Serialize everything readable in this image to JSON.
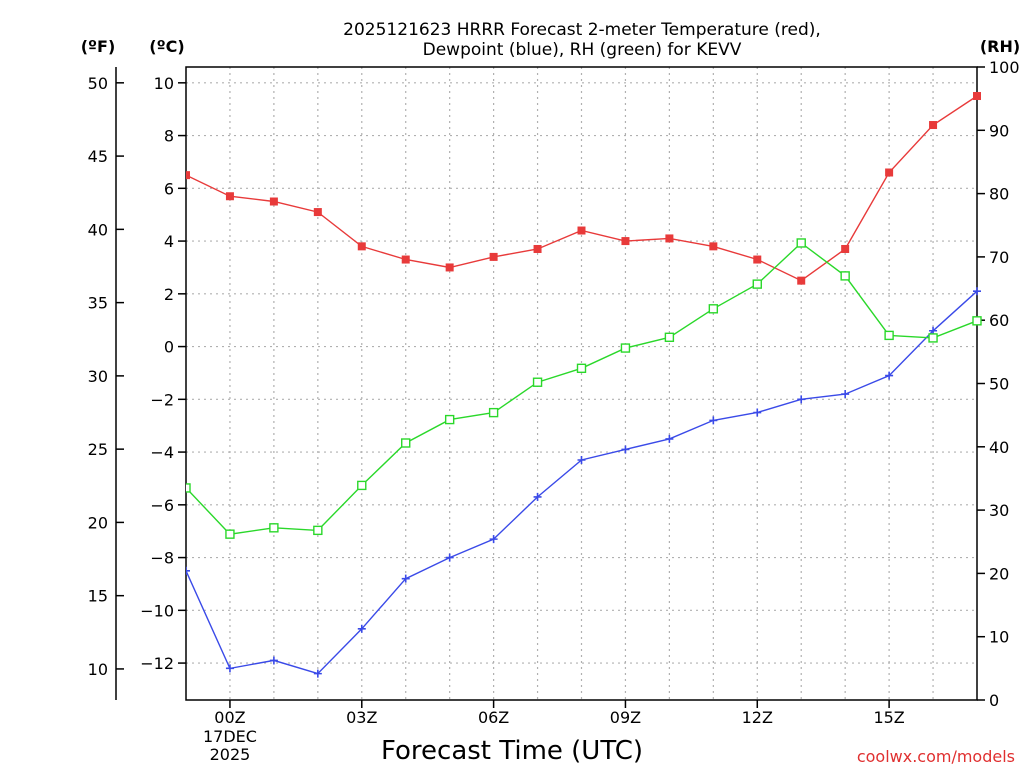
{
  "chart_data": {
    "type": "line",
    "title": [
      "2025121623 HRRR Forecast 2-meter Temperature (red),",
      "Dewpoint (blue), RH (green) for KEVV"
    ],
    "xlabel": "Forecast Time (UTC)",
    "credit": "coolwx.com/models",
    "units": {
      "left_outer": "(ºF)",
      "left_inner": "(ºC)",
      "right": "(RH)"
    },
    "x_hours_since_00Z": [
      -1,
      0,
      1,
      2,
      3,
      4,
      5,
      6,
      7,
      8,
      9,
      10,
      11,
      12,
      13,
      14,
      15,
      16,
      17
    ],
    "x_ticks": [
      {
        "hour": 0,
        "label": "00Z",
        "sub": [
          "17DEC",
          "2025"
        ]
      },
      {
        "hour": 3,
        "label": "03Z",
        "sub": []
      },
      {
        "hour": 6,
        "label": "06Z",
        "sub": []
      },
      {
        "hour": 9,
        "label": "09Z",
        "sub": []
      },
      {
        "hour": 12,
        "label": "12Z",
        "sub": []
      },
      {
        "hour": 15,
        "label": "15Z",
        "sub": []
      }
    ],
    "xlim": [
      -1,
      17
    ],
    "ylim_c": [
      -13.4,
      10.6
    ],
    "ylim_f": [
      7.88,
      51.08
    ],
    "ylim_rh": [
      0,
      100
    ],
    "y_ticks_c": [
      -12,
      -10,
      -8,
      -6,
      -4,
      -2,
      0,
      2,
      4,
      6,
      8,
      10
    ],
    "y_ticks_f": [
      10,
      15,
      20,
      25,
      30,
      35,
      40,
      45,
      50
    ],
    "y_ticks_rh": [
      0,
      10,
      20,
      30,
      40,
      50,
      60,
      70,
      80,
      90,
      100
    ],
    "series": [
      {
        "name": "Temperature",
        "axis": "c",
        "color": "#e83a3a",
        "marker": "filled-square",
        "values": [
          6.5,
          5.7,
          5.5,
          5.1,
          3.8,
          3.3,
          3.0,
          3.4,
          3.7,
          4.4,
          4.0,
          4.1,
          3.8,
          3.3,
          2.5,
          3.7,
          6.6,
          8.4,
          9.5
        ]
      },
      {
        "name": "Dewpoint",
        "axis": "c",
        "color": "#3a4ae8",
        "marker": "plus",
        "values": [
          -8.5,
          -12.2,
          -11.9,
          -12.4,
          -10.7,
          -8.8,
          -8.0,
          -7.3,
          -5.7,
          -4.3,
          -3.9,
          -3.5,
          -2.8,
          -2.5,
          -2.0,
          -1.8,
          -1.1,
          0.6,
          2.1
        ]
      },
      {
        "name": "RH",
        "axis": "rh",
        "color": "#2ad82a",
        "marker": "open-square",
        "values": [
          33.5,
          26.2,
          27.2,
          26.8,
          33.9,
          40.6,
          44.3,
          45.4,
          50.2,
          52.4,
          55.6,
          57.3,
          61.8,
          65.7,
          72.2,
          67.0,
          57.6,
          57.2,
          59.9
        ]
      }
    ]
  }
}
